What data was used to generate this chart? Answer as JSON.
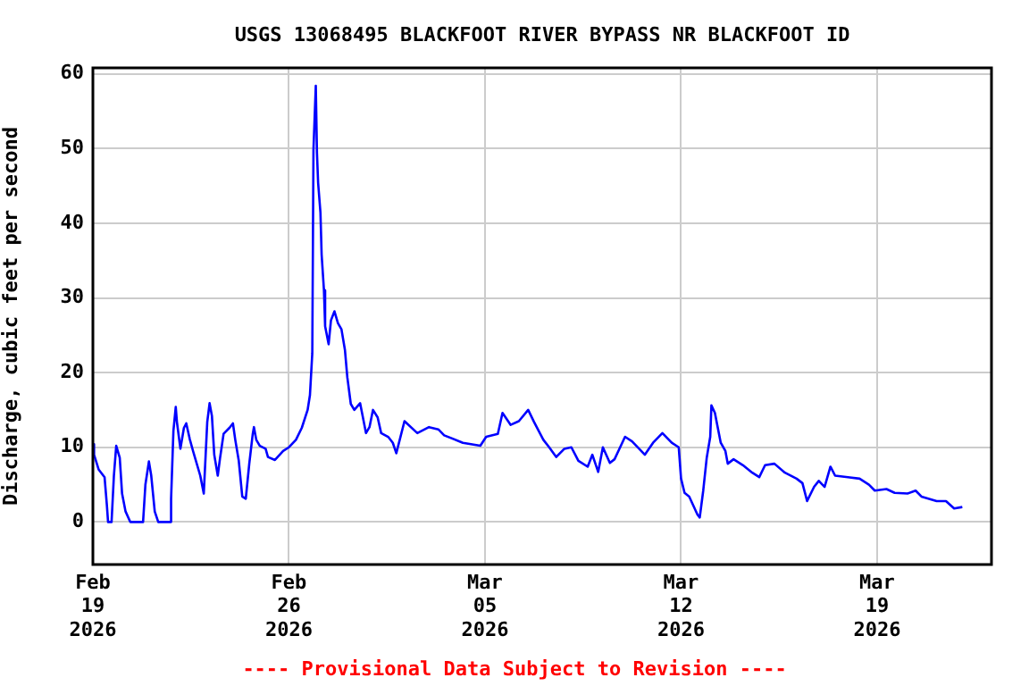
{
  "chart_data": {
    "type": "line",
    "title": "USGS 13068495 BLACKFOOT RIVER BYPASS NR BLACKFOOT ID",
    "ylabel": "Discharge, cubic feet per second",
    "annotations": [
      "---- Provisional Data Subject to Revision ----"
    ],
    "xlim": [
      "2026-02-19",
      "2026-03-23T02:00"
    ],
    "ylim": [
      -5.7,
      60.8
    ],
    "xticks": [
      {
        "value": "2026-02-19",
        "label": "Feb\n19\n2026"
      },
      {
        "value": "2026-02-26",
        "label": "Feb\n26\n2026"
      },
      {
        "value": "2026-03-05",
        "label": "Mar\n05\n2026"
      },
      {
        "value": "2026-03-12",
        "label": "Mar\n12\n2026"
      },
      {
        "value": "2026-03-19",
        "label": "Mar\n19\n2026"
      }
    ],
    "yticks": [
      0,
      10,
      20,
      30,
      40,
      50,
      60
    ],
    "grid": true,
    "legend": false,
    "marker": "none",
    "line_style": "solid",
    "x": [
      "2026-02-19T00:00",
      "2026-02-19T01:00",
      "2026-02-19T05:00",
      "2026-02-19T10:00",
      "2026-02-19T12:00",
      "2026-02-19T13:00",
      "2026-02-19T16:00",
      "2026-02-19T18:00",
      "2026-02-19T20:00",
      "2026-02-19T23:00",
      "2026-02-20T01:00",
      "2026-02-20T04:00",
      "2026-02-20T08:00",
      "2026-02-20T19:00",
      "2026-02-20T21:00",
      "2026-02-21T00:00",
      "2026-02-21T02:00",
      "2026-02-21T05:00",
      "2026-02-21T08:00",
      "2026-02-21T18:00",
      "2026-02-21T19:00",
      "2026-02-21T21:00",
      "2026-02-21T23:00",
      "2026-02-22T00:00",
      "2026-02-22T03:00",
      "2026-02-22T06:00",
      "2026-02-22T08:00",
      "2026-02-22T11:00",
      "2026-02-22T14:00",
      "2026-02-22T20:00",
      "2026-02-22T23:00",
      "2026-02-23T02:00",
      "2026-02-23T04:00",
      "2026-02-23T06:00",
      "2026-02-23T08:00",
      "2026-02-23T11:00",
      "2026-02-23T13:00",
      "2026-02-23T16:00",
      "2026-02-23T21:00",
      "2026-02-24T00:00",
      "2026-02-24T02:00",
      "2026-02-24T05:00",
      "2026-02-24T08:00",
      "2026-02-24T11:00",
      "2026-02-24T14:00",
      "2026-02-24T17:00",
      "2026-02-24T18:00",
      "2026-02-24T20:00",
      "2026-02-24T23:00",
      "2026-02-25T04:00",
      "2026-02-25T06:00",
      "2026-02-25T12:00",
      "2026-02-25T19:00",
      "2026-02-26T00:00",
      "2026-02-26T06:00",
      "2026-02-26T11:00",
      "2026-02-26T16:00",
      "2026-02-26T18:00",
      "2026-02-26T20:00",
      "2026-02-26T21:00",
      "2026-02-26T23:00",
      "2026-02-27T00:00",
      "2026-02-27T01:00",
      "2026-02-27T03:00",
      "2026-02-27T04:00",
      "2026-02-27T06:00",
      "2026-02-27T07:00",
      "2026-02-27T10:00",
      "2026-02-27T12:00",
      "2026-02-27T15:00",
      "2026-02-27T18:00",
      "2026-02-27T21:00",
      "2026-02-28T00:00",
      "2026-02-28T02:00",
      "2026-02-28T05:00",
      "2026-02-28T08:00",
      "2026-02-28T13:00",
      "2026-02-28T15:00",
      "2026-02-28T18:00",
      "2026-02-28T21:00",
      "2026-03-01T00:00",
      "2026-03-01T04:00",
      "2026-03-01T07:00",
      "2026-03-01T13:00",
      "2026-03-01T17:00",
      "2026-03-01T20:00",
      "2026-03-02T03:00",
      "2026-03-02T14:00",
      "2026-03-03T00:00",
      "2026-03-03T08:00",
      "2026-03-03T13:00",
      "2026-03-04T05:00",
      "2026-03-04T20:00",
      "2026-03-05T01:00",
      "2026-03-05T11:00",
      "2026-03-05T15:00",
      "2026-03-05T22:00",
      "2026-03-06T05:00",
      "2026-03-06T13:00",
      "2026-03-06T18:00",
      "2026-03-07T02:00",
      "2026-03-07T07:00",
      "2026-03-07T13:00",
      "2026-03-07T20:00",
      "2026-03-08T02:00",
      "2026-03-08T08:00",
      "2026-03-08T16:00",
      "2026-03-08T20:00",
      "2026-03-09T01:00",
      "2026-03-09T05:00",
      "2026-03-09T11:00",
      "2026-03-09T15:00",
      "2026-03-10T00:00",
      "2026-03-10T06:00",
      "2026-03-10T17:00",
      "2026-03-11T00:00",
      "2026-03-11T08:00",
      "2026-03-11T16:00",
      "2026-03-11T22:00",
      "2026-03-12T00:00",
      "2026-03-12T03:00",
      "2026-03-12T07:00",
      "2026-03-12T14:00",
      "2026-03-12T16:00",
      "2026-03-12T19:00",
      "2026-03-12T22:00",
      "2026-03-13T01:00",
      "2026-03-13T02:00",
      "2026-03-13T05:00",
      "2026-03-13T07:00",
      "2026-03-13T10:00",
      "2026-03-13T14:00",
      "2026-03-13T16:00",
      "2026-03-13T21:00",
      "2026-03-14T05:00",
      "2026-03-14T13:00",
      "2026-03-14T19:00",
      "2026-03-15T00:00",
      "2026-03-15T08:00",
      "2026-03-15T17:00",
      "2026-03-16T03:00",
      "2026-03-16T08:00",
      "2026-03-16T12:00",
      "2026-03-16T18:00",
      "2026-03-16T22:00",
      "2026-03-17T03:00",
      "2026-03-17T08:00",
      "2026-03-17T12:00",
      "2026-03-17T23:00",
      "2026-03-18T09:00",
      "2026-03-18T17:00",
      "2026-03-18T22:00",
      "2026-03-19T08:00",
      "2026-03-19T15:00",
      "2026-03-20T02:00",
      "2026-03-20T09:00",
      "2026-03-20T14:00",
      "2026-03-21T03:00",
      "2026-03-21T11:00",
      "2026-03-21T18:00",
      "2026-03-22T01:00"
    ],
    "series": [
      {
        "color": "#0000ff",
        "values": [
          10.4,
          9.0,
          7.0,
          6.0,
          2.2,
          0,
          0,
          6.2,
          10.2,
          8.6,
          3.8,
          1.4,
          0,
          0,
          5.0,
          8.1,
          6.2,
          1.4,
          0,
          0,
          3.1,
          12.2,
          15.4,
          13.4,
          9.8,
          12.6,
          13.2,
          11.1,
          9.4,
          6.2,
          3.8,
          13.4,
          15.9,
          14.2,
          9.0,
          6.2,
          8.6,
          11.8,
          12.6,
          13.2,
          11.0,
          8.2,
          3.4,
          3.1,
          7.8,
          11.8,
          12.7,
          11.0,
          10.2,
          9.8,
          8.7,
          8.3,
          9.5,
          10.0,
          11.0,
          12.6,
          15.0,
          17.0,
          22.6,
          49.8,
          58.4,
          49.4,
          45.4,
          41.4,
          35.8,
          31.0,
          26.2,
          23.8,
          27.0,
          28.2,
          26.6,
          25.8,
          23.0,
          19.4,
          15.8,
          15.0,
          15.9,
          14.3,
          11.9,
          12.7,
          15.0,
          14.0,
          11.9,
          11.4,
          10.6,
          9.2,
          13.5,
          11.9,
          12.7,
          12.4,
          11.6,
          10.6,
          10.2,
          11.4,
          11.8,
          14.6,
          13.0,
          13.5,
          15.0,
          13.4,
          11.0,
          10.0,
          8.7,
          9.8,
          10.0,
          8.2,
          7.4,
          9.0,
          6.7,
          10.0,
          7.9,
          8.4,
          11.4,
          10.8,
          9.0,
          10.6,
          11.9,
          10.6,
          10.0,
          5.8,
          3.9,
          3.4,
          1.0,
          0.6,
          4.2,
          8.6,
          11.4,
          15.6,
          14.6,
          13.0,
          10.6,
          9.5,
          7.8,
          8.4,
          7.6,
          6.6,
          6.0,
          7.6,
          7.8,
          6.6,
          5.8,
          5.2,
          2.8,
          4.7,
          5.5,
          4.7,
          7.4,
          6.2,
          6.0,
          5.8,
          5.0,
          4.2,
          4.4,
          3.9,
          3.8,
          4.2,
          3.4,
          2.8,
          2.8,
          1.8,
          2.0
        ]
      }
    ]
  }
}
